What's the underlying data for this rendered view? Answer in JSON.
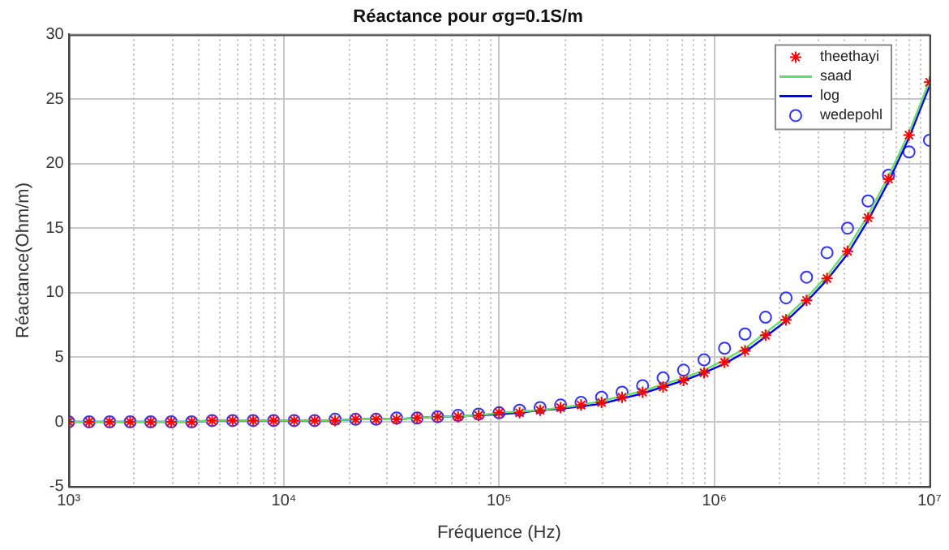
{
  "chart_data": {
    "type": "scatter",
    "title": "Réactance pour σg=0.1S/m",
    "xlabel": "Fréquence (Hz)",
    "ylabel": "Réactance(Ohm/m)",
    "x": [
      1000,
      1245,
      1551,
      1931,
      2404,
      2994,
      3728,
      4642,
      5780,
      7197,
      8962,
      11160,
      13890,
      17300,
      21540,
      26830,
      33400,
      41600,
      51790,
      64490,
      80300,
      100000,
      124500,
      155100,
      193100,
      240400,
      299400,
      372800,
      464200,
      578000,
      719700,
      896200,
      1116000,
      1389000,
      1730000,
      2154000,
      2683000,
      3340000,
      4160000,
      5179000,
      6449000,
      8030000,
      10000000
    ],
    "series": [
      {
        "name": "theethayi",
        "marker": "cross",
        "color": "#ff0000",
        "values": [
          0,
          0,
          0,
          0,
          0,
          0,
          0,
          0.1,
          0.1,
          0.1,
          0.1,
          0.1,
          0.1,
          0.1,
          0.2,
          0.2,
          0.2,
          0.3,
          0.4,
          0.4,
          0.5,
          0.7,
          0.7,
          0.9,
          1.1,
          1.3,
          1.5,
          1.9,
          2.3,
          2.7,
          3.2,
          3.8,
          4.6,
          5.5,
          6.7,
          7.9,
          9.4,
          11.1,
          13.2,
          15.8,
          18.8,
          22.2,
          26.3
        ]
      },
      {
        "name": "saad",
        "type": "line",
        "marker": "none",
        "line_style": "solid",
        "color": "#66dd66",
        "values": [
          0,
          0,
          0,
          0,
          0,
          0,
          0,
          0.1,
          0.1,
          0.1,
          0.1,
          0.1,
          0.1,
          0.1,
          0.2,
          0.2,
          0.2,
          0.3,
          0.4,
          0.4,
          0.5,
          0.7,
          0.8,
          0.9,
          1.1,
          1.3,
          1.6,
          2.0,
          2.4,
          2.9,
          3.4,
          4.0,
          4.8,
          5.7,
          6.9,
          8.1,
          9.6,
          11.3,
          13.4,
          16.0,
          19.0,
          22.4,
          26.4
        ]
      },
      {
        "name": "log",
        "type": "line",
        "marker": "none",
        "line_style": "solid",
        "color": "#0000ff",
        "values": [
          0,
          0,
          0,
          0,
          0,
          0,
          0,
          0.1,
          0.1,
          0.1,
          0.1,
          0.1,
          0.1,
          0.1,
          0.2,
          0.2,
          0.2,
          0.3,
          0.4,
          0.4,
          0.5,
          0.6,
          0.7,
          0.9,
          1.0,
          1.2,
          1.4,
          1.8,
          2.2,
          2.7,
          3.2,
          3.8,
          4.5,
          5.4,
          6.6,
          7.8,
          9.3,
          11.0,
          13.0,
          15.6,
          18.6,
          22.0,
          26.0
        ]
      },
      {
        "name": "wedepohl",
        "marker": "circle",
        "color": "#3333ff",
        "values": [
          0,
          0,
          0,
          0,
          0,
          0,
          0,
          0.1,
          0.1,
          0.1,
          0.1,
          0.1,
          0.1,
          0.2,
          0.2,
          0.2,
          0.3,
          0.3,
          0.4,
          0.5,
          0.6,
          0.7,
          0.9,
          1.1,
          1.3,
          1.5,
          1.9,
          2.3,
          2.8,
          3.4,
          4.0,
          4.8,
          5.7,
          6.8,
          8.1,
          9.6,
          11.2,
          13.1,
          15.0,
          17.1,
          19.1,
          20.9,
          21.8
        ]
      }
    ],
    "log": "x",
    "xlim": [
      1000,
      10000000
    ],
    "ylim": [
      -5,
      30
    ],
    "xticks": [
      {
        "value": 1000,
        "label": "10³"
      },
      {
        "value": 2000,
        "label": null
      },
      {
        "value": 3000,
        "label": null
      },
      {
        "value": 4000,
        "label": null
      },
      {
        "value": 5000,
        "label": null
      },
      {
        "value": 6000,
        "label": null
      },
      {
        "value": 7000,
        "label": null
      },
      {
        "value": 8000,
        "label": null
      },
      {
        "value": 9000,
        "label": null
      },
      {
        "value": 10000,
        "label": "10⁴"
      },
      {
        "value": 20000,
        "label": null
      },
      {
        "value": 30000,
        "label": null
      },
      {
        "value": 40000,
        "label": null
      },
      {
        "value": 50000,
        "label": null
      },
      {
        "value": 60000,
        "label": null
      },
      {
        "value": 70000,
        "label": null
      },
      {
        "value": 80000,
        "label": null
      },
      {
        "value": 90000,
        "label": null
      },
      {
        "value": 100000,
        "label": "10⁵"
      },
      {
        "value": 200000,
        "label": null
      },
      {
        "value": 300000,
        "label": null
      },
      {
        "value": 400000,
        "label": null
      },
      {
        "value": 500000,
        "label": null
      },
      {
        "value": 600000,
        "label": null
      },
      {
        "value": 700000,
        "label": null
      },
      {
        "value": 800000,
        "label": null
      },
      {
        "value": 900000,
        "label": null
      },
      {
        "value": 1000000,
        "label": "10⁶"
      },
      {
        "value": 2000000,
        "label": null
      },
      {
        "value": 3000000,
        "label": null
      },
      {
        "value": 4000000,
        "label": null
      },
      {
        "value": 5000000,
        "label": null
      },
      {
        "value": 6000000,
        "label": null
      },
      {
        "value": 7000000,
        "label": null
      },
      {
        "value": 8000000,
        "label": null
      },
      {
        "value": 9000000,
        "label": null
      },
      {
        "value": 10000000,
        "label": "10⁷"
      }
    ],
    "yticks": [
      -5,
      0,
      5,
      10,
      15,
      20,
      25,
      30
    ],
    "grid": true,
    "legend": "top right"
  }
}
